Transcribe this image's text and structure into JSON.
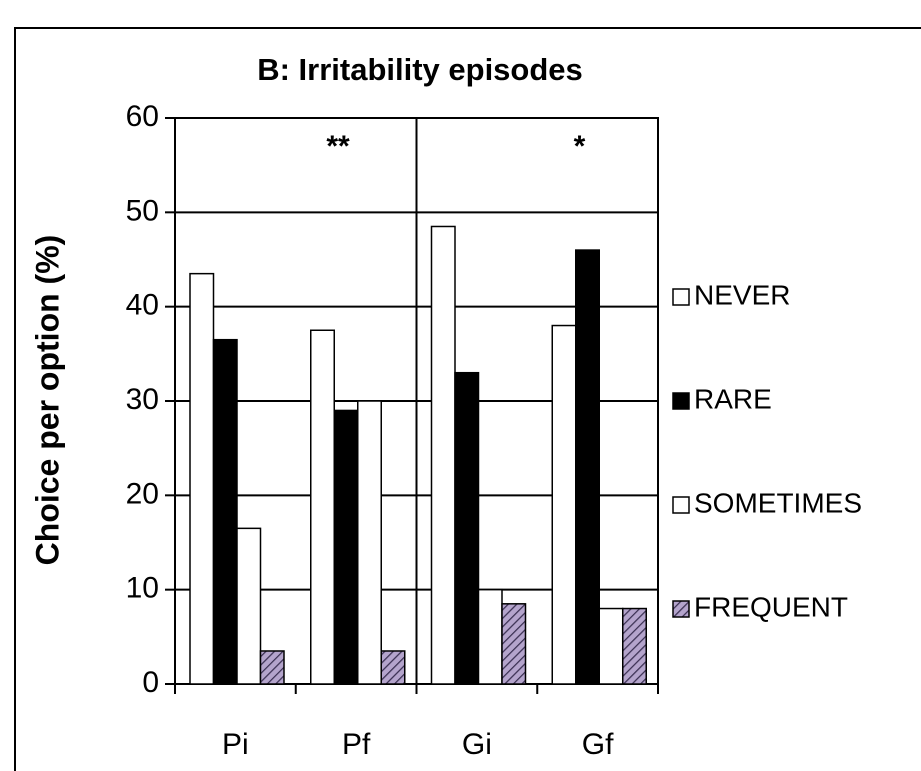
{
  "chart_data": {
    "type": "bar",
    "title": "B: Irritability episodes",
    "y_label": "Choice per option (%)",
    "categories": [
      "Pi",
      "Pf",
      "Gi",
      "Gf"
    ],
    "series": [
      {
        "name": "NEVER",
        "color": "#ffffff",
        "values": [
          43.5,
          37.5,
          48.5,
          38
        ]
      },
      {
        "name": "RARE",
        "color": "#000000",
        "values": [
          36.5,
          29,
          33,
          46
        ]
      },
      {
        "name": "SOMETIMES",
        "color": "#ffffff",
        "values": [
          16.5,
          30,
          10,
          8
        ]
      },
      {
        "name": "FREQUENT",
        "color": "#b4a4cc",
        "pattern": "hatch",
        "values": [
          3.5,
          3.5,
          8.5,
          8
        ]
      }
    ],
    "annotations": [
      "**",
      "*"
    ],
    "ylim": [
      0,
      60
    ],
    "yticks": [
      0,
      10,
      20,
      30,
      40,
      50,
      60
    ],
    "grid": true,
    "legend": "right"
  }
}
